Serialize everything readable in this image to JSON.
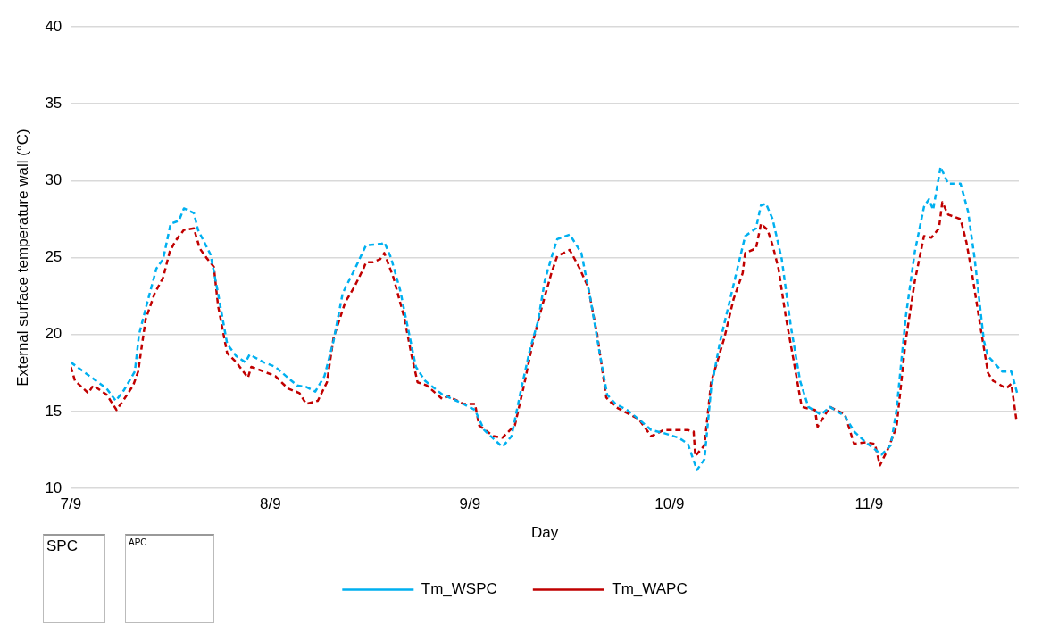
{
  "chart_data": {
    "type": "line",
    "xlabel": "Day",
    "ylabel": "External surface temperature wall (°C)",
    "xlim": [
      "--09-07T00:00",
      "--09-11T18:00"
    ],
    "xticks": [
      {
        "value": "--09-07",
        "label": "7/9"
      },
      {
        "value": "--09-08",
        "label": "8/9"
      },
      {
        "value": "--09-09",
        "label": "9/9"
      },
      {
        "value": "--09-10",
        "label": "10/9"
      },
      {
        "value": "--09-11",
        "label": "11/9"
      }
    ],
    "ylim": [
      10,
      40
    ],
    "yticks": [
      10,
      15,
      20,
      25,
      30,
      35,
      40
    ],
    "grid": "y",
    "legend": "bottom",
    "line_style": "dashed",
    "marker": "none",
    "annotations": [
      "SPC",
      "APC"
    ],
    "series": [
      {
        "name": "Tm_WSPC",
        "color": "#00b0f0",
        "x": [
          "--09-07T00:00",
          "--09-07T04:18",
          "--09-07T05:24",
          "--09-07T06:24",
          "--09-07T07:42",
          "--09-07T08:12",
          "--09-07T09:12",
          "--09-07T10:18",
          "--09-07T11:06",
          "--09-07T12:00",
          "--09-07T13:00",
          "--09-07T13:36",
          "--09-07T14:48",
          "--09-07T15:18",
          "--09-07T16:48",
          "--09-07T17:42",
          "--09-07T18:48",
          "--09-07T19:54",
          "--09-07T21:00",
          "--09-07T21:30",
          "--09-07T23:12",
          "--09-08T00:36",
          "--09-08T02:06",
          "--09-08T03:12",
          "--09-08T04:18",
          "--09-08T05:24",
          "--09-08T06:30",
          "--09-08T07:36",
          "--09-08T08:42",
          "--09-08T10:06",
          "--09-08T11:30",
          "--09-08T13:24",
          "--09-08T13:42",
          "--09-08T14:30",
          "--09-08T15:36",
          "--09-08T16:42",
          "--09-08T17:30",
          "--09-08T18:36",
          "--09-08T20:42",
          "--09-08T23:12",
          "--09-09T00:36",
          "--09-09T01:42",
          "--09-09T03:18",
          "--09-09T03:54",
          "--09-09T05:00",
          "--09-09T06:06",
          "--09-09T07:12",
          "--09-09T08:12",
          "--09-09T09:00",
          "--09-09T09:48",
          "--09-09T10:30",
          "--09-09T12:00",
          "--09-09T13:24",
          "--09-09T14:30",
          "--09-09T15:36",
          "--09-09T16:30",
          "--09-09T17:30",
          "--09-09T18:54",
          "--09-09T20:18",
          "--09-09T21:48",
          "--09-09T23:18",
          "--09-10T01:06",
          "--09-10T02:12",
          "--09-10T03:18",
          "--09-10T04:12",
          "--09-10T05:00",
          "--09-10T06:06",
          "--09-10T07:12",
          "--09-10T08:18",
          "--09-10T09:06",
          "--09-10T10:24",
          "--09-10T11:00",
          "--09-10T11:36",
          "--09-10T12:24",
          "--09-10T13:30",
          "--09-10T14:36",
          "--09-10T15:42",
          "--09-10T16:42",
          "--09-10T18:12",
          "--09-10T19:18",
          "--09-10T21:06",
          "--09-10T22:12",
          "--09-10T23:36",
          "--09-11T01:30",
          "--09-11T02:36",
          "--09-11T03:18",
          "--09-11T04:24",
          "--09-11T05:30",
          "--09-11T06:36",
          "--09-11T07:12",
          "--09-11T07:42",
          "--09-11T08:36",
          "--09-11T09:30",
          "--09-11T11:00",
          "--09-11T11:54",
          "--09-11T12:42",
          "--09-11T13:48",
          "--09-11T14:18",
          "--09-11T16:00",
          "--09-11T17:06",
          "--09-11T17:54"
        ],
        "values": [
          18.2,
          16.5,
          15.7,
          16.4,
          17.6,
          20.0,
          22.1,
          24.3,
          24.9,
          27.2,
          27.4,
          28.2,
          27.9,
          26.8,
          25.2,
          22.7,
          19.4,
          18.6,
          18.2,
          18.7,
          18.2,
          17.9,
          17.2,
          16.7,
          16.6,
          16.3,
          17.3,
          19.6,
          22.7,
          24.2,
          25.8,
          25.9,
          26.0,
          25.0,
          22.9,
          20.0,
          17.9,
          17.0,
          16.1,
          15.5,
          15.1,
          13.8,
          13.0,
          12.7,
          13.4,
          16.3,
          19.0,
          20.9,
          23.5,
          25.0,
          26.2,
          26.5,
          25.3,
          22.3,
          18.8,
          16.1,
          15.5,
          15.1,
          14.5,
          13.8,
          13.6,
          13.3,
          12.9,
          11.2,
          11.9,
          16.5,
          19.6,
          22.1,
          24.6,
          26.4,
          26.9,
          28.4,
          28.5,
          27.5,
          24.9,
          20.5,
          17.0,
          15.3,
          14.8,
          15.3,
          14.7,
          13.7,
          13.0,
          12.2,
          12.8,
          15.1,
          21.1,
          25.4,
          28.3,
          28.8,
          28.1,
          30.9,
          29.8,
          29.8,
          28.0,
          24.9,
          19.6,
          18.6,
          17.6,
          17.6,
          16.0
        ]
      },
      {
        "name": "Tm_WAPC",
        "color": "#c00000",
        "x": [
          "--09-07T00:00",
          "--09-07T00:30",
          "--09-07T02:06",
          "--09-07T02:42",
          "--09-07T04:18",
          "--09-07T05:30",
          "--09-07T06:24",
          "--09-07T07:30",
          "--09-07T08:06",
          "--09-07T09:00",
          "--09-07T10:06",
          "--09-07T11:06",
          "--09-07T11:54",
          "--09-07T12:36",
          "--09-07T13:36",
          "--09-07T14:48",
          "--09-07T15:30",
          "--09-07T16:18",
          "--09-07T17:12",
          "--09-07T17:42",
          "--09-07T18:48",
          "--09-07T19:54",
          "--09-07T21:18",
          "--09-07T21:42",
          "--09-07T23:12",
          "--09-08T00:36",
          "--09-08T02:06",
          "--09-08T03:30",
          "--09-08T04:18",
          "--09-08T05:42",
          "--09-08T06:48",
          "--09-08T07:36",
          "--09-08T09:00",
          "--09-08T10:06",
          "--09-08T11:12",
          "--09-08T11:30",
          "--09-08T12:18",
          "--09-08T13:12",
          "--09-08T13:42",
          "--09-08T14:48",
          "--09-08T16:06",
          "--09-08T17:00",
          "--09-08T17:42",
          "--09-08T18:48",
          "--09-08T20:42",
          "--09-08T21:24",
          "--09-08T23:12",
          "--09-09T00:36",
          "--09-09T01:06",
          "--09-09T02:48",
          "--09-09T03:54",
          "--09-09T05:24",
          "--09-09T06:30",
          "--09-09T07:36",
          "--09-09T08:42",
          "--09-09T09:48",
          "--09-09T10:30",
          "--09-09T12:00",
          "--09-09T13:06",
          "--09-09T14:12",
          "--09-09T15:18",
          "--09-09T16:24",
          "--09-09T17:30",
          "--09-09T18:54",
          "--09-09T20:18",
          "--09-09T21:48",
          "--09-09T23:18",
          "--09-10T01:06",
          "--09-10T02:12",
          "--09-10T02:54",
          "--09-10T03:06",
          "--09-10T04:12",
          "--09-10T05:00",
          "--09-10T06:36",
          "--09-10T07:42",
          "--09-10T08:48",
          "--09-10T09:06",
          "--09-10T10:24",
          "--09-10T11:00",
          "--09-10T11:48",
          "--09-10T12:24",
          "--09-10T13:06",
          "--09-10T14:00",
          "--09-10T14:54",
          "--09-10T15:54",
          "--09-10T17:30",
          "--09-10T17:48",
          "--09-10T19:18",
          "--09-10T21:06",
          "--09-10T22:12",
          "--09-10T23:36",
          "--09-11T00:42",
          "--09-11T01:18",
          "--09-11T02:18",
          "--09-11T03:18",
          "--09-11T04:24",
          "--09-11T05:30",
          "--09-11T06:36",
          "--09-11T07:30",
          "--09-11T08:24",
          "--09-11T08:48",
          "--09-11T09:30",
          "--09-11T11:00",
          "--09-11T11:42",
          "--09-11T12:24",
          "--09-11T13:18",
          "--09-11T14:18",
          "--09-11T14:54",
          "--09-11T16:30",
          "--09-11T17:06",
          "--09-11T17:42"
        ],
        "values": [
          17.9,
          17.0,
          16.2,
          16.7,
          16.1,
          15.1,
          15.8,
          16.7,
          17.6,
          21.0,
          22.7,
          23.7,
          25.4,
          26.1,
          26.8,
          26.9,
          25.6,
          25.0,
          24.4,
          21.9,
          18.8,
          18.2,
          17.2,
          17.9,
          17.6,
          17.3,
          16.5,
          16.2,
          15.5,
          15.7,
          16.9,
          19.8,
          22.1,
          23.1,
          24.3,
          24.7,
          24.7,
          24.9,
          25.3,
          23.7,
          21.1,
          18.6,
          16.9,
          16.7,
          15.8,
          16.0,
          15.5,
          15.5,
          14.1,
          13.4,
          13.3,
          14.1,
          16.7,
          19.6,
          21.9,
          24.0,
          25.1,
          25.5,
          24.4,
          23.1,
          20.0,
          15.9,
          15.3,
          14.9,
          14.5,
          13.4,
          13.8,
          13.8,
          13.8,
          13.7,
          12.1,
          12.8,
          16.9,
          19.8,
          22.3,
          24.0,
          25.3,
          25.6,
          27.2,
          26.8,
          25.8,
          24.3,
          21.1,
          18.4,
          15.3,
          15.1,
          14.0,
          15.3,
          14.8,
          12.9,
          13.0,
          12.9,
          11.5,
          12.6,
          14.0,
          19.6,
          23.5,
          26.4,
          26.3,
          26.9,
          28.6,
          27.8,
          27.5,
          26.0,
          23.9,
          20.8,
          17.5,
          17.0,
          16.5,
          16.8,
          14.5
        ]
      }
    ]
  }
}
